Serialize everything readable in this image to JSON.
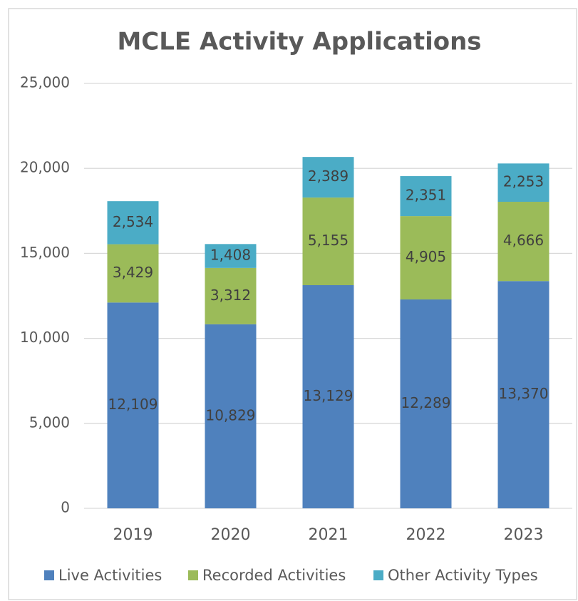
{
  "chart_data": {
    "type": "stacked_bar",
    "title": "MCLE Activity Applications",
    "categories": [
      "2019",
      "2020",
      "2021",
      "2022",
      "2023"
    ],
    "series": [
      {
        "name": "Live Activities",
        "color": "#4f81bd",
        "values": [
          12109,
          10829,
          13129,
          12289,
          13370
        ],
        "value_labels": [
          "12,109",
          "10,829",
          "13,129",
          "12,289",
          "13,370"
        ]
      },
      {
        "name": "Recorded Activities",
        "color": "#9bbb59",
        "values": [
          3429,
          3312,
          5155,
          4905,
          4666
        ],
        "value_labels": [
          "3,429",
          "3,312",
          "5,155",
          "4,905",
          "4,666"
        ]
      },
      {
        "name": "Other Activity Types",
        "color": "#4bacc6",
        "values": [
          2534,
          1408,
          2389,
          2351,
          2253
        ],
        "value_labels": [
          "2,534",
          "1,408",
          "2,389",
          "2,351",
          "2,253"
        ]
      }
    ],
    "ylim": [
      0,
      25000
    ],
    "yticks": [
      0,
      {
        "value": 5000,
        "label": "5,000"
      },
      {
        "value": 10000,
        "label": "10,000"
      },
      {
        "value": 15000,
        "label": "15,000"
      },
      {
        "value": 20000,
        "label": "20,000"
      },
      {
        "value": 25000,
        "label": "25,000"
      }
    ],
    "grid": true,
    "legend": "bottom"
  }
}
